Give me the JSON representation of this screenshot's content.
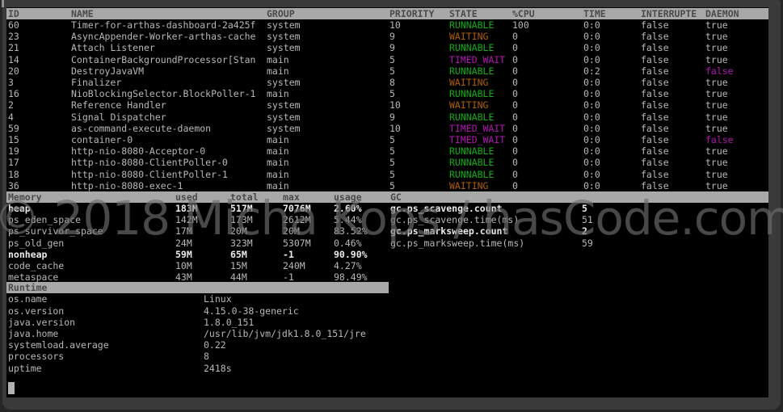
{
  "watermark": {
    "text": "© 2018 Micha Kops / hasCode.com"
  },
  "colors": {
    "text": "#b8b8b8",
    "bold_text": "#ebebeb",
    "header_bar_bg": "#a8a8a8",
    "header_bar_text": "#4a4a4a",
    "state_colors": {
      "RUNNABLE": "#0fae0f",
      "WAITING": "#ae5f00",
      "TIMED_WAIT": "#b413b4"
    },
    "daemon_false": "#b413b4"
  },
  "thread_table": {
    "headers": [
      "ID",
      "NAME",
      "GROUP",
      "PRIORITY",
      "STATE",
      "%CPU",
      "TIME",
      "INTERRUPTE",
      "DAEMON"
    ],
    "rows": [
      {
        "id": "60",
        "name": "Timer-for-arthas-dashboard-2a425f",
        "group": "system",
        "priority": "10",
        "state": "RUNNABLE",
        "cpu": "100",
        "time": "0:0",
        "interrupted": "false",
        "daemon": "true"
      },
      {
        "id": "23",
        "name": "AsyncAppender-Worker-arthas-cache",
        "group": "system",
        "priority": "9",
        "state": "WAITING",
        "cpu": "0",
        "time": "0:0",
        "interrupted": "false",
        "daemon": "true"
      },
      {
        "id": "21",
        "name": "Attach Listener",
        "group": "system",
        "priority": "9",
        "state": "RUNNABLE",
        "cpu": "0",
        "time": "0:0",
        "interrupted": "false",
        "daemon": "true"
      },
      {
        "id": "14",
        "name": "ContainerBackgroundProcessor[Stan",
        "group": "main",
        "priority": "5",
        "state": "TIMED_WAIT",
        "cpu": "0",
        "time": "0:0",
        "interrupted": "false",
        "daemon": "true"
      },
      {
        "id": "20",
        "name": "DestroyJavaVM",
        "group": "main",
        "priority": "5",
        "state": "RUNNABLE",
        "cpu": "0",
        "time": "0:2",
        "interrupted": "false",
        "daemon": "false"
      },
      {
        "id": "3",
        "name": "Finalizer",
        "group": "system",
        "priority": "8",
        "state": "WAITING",
        "cpu": "0",
        "time": "0:0",
        "interrupted": "false",
        "daemon": "true"
      },
      {
        "id": "16",
        "name": "NioBlockingSelector.BlockPoller-1",
        "group": "main",
        "priority": "5",
        "state": "RUNNABLE",
        "cpu": "0",
        "time": "0:0",
        "interrupted": "false",
        "daemon": "true"
      },
      {
        "id": "2",
        "name": "Reference Handler",
        "group": "system",
        "priority": "10",
        "state": "WAITING",
        "cpu": "0",
        "time": "0:0",
        "interrupted": "false",
        "daemon": "true"
      },
      {
        "id": "4",
        "name": "Signal Dispatcher",
        "group": "system",
        "priority": "9",
        "state": "RUNNABLE",
        "cpu": "0",
        "time": "0:0",
        "interrupted": "false",
        "daemon": "true"
      },
      {
        "id": "59",
        "name": "as-command-execute-daemon",
        "group": "system",
        "priority": "10",
        "state": "TIMED_WAIT",
        "cpu": "0",
        "time": "0:0",
        "interrupted": "false",
        "daemon": "true"
      },
      {
        "id": "15",
        "name": "container-0",
        "group": "main",
        "priority": "5",
        "state": "TIMED_WAIT",
        "cpu": "0",
        "time": "0:0",
        "interrupted": "false",
        "daemon": "false"
      },
      {
        "id": "19",
        "name": "http-nio-8080-Acceptor-0",
        "group": "main",
        "priority": "5",
        "state": "RUNNABLE",
        "cpu": "0",
        "time": "0:0",
        "interrupted": "false",
        "daemon": "true"
      },
      {
        "id": "17",
        "name": "http-nio-8080-ClientPoller-0",
        "group": "main",
        "priority": "5",
        "state": "RUNNABLE",
        "cpu": "0",
        "time": "0:0",
        "interrupted": "false",
        "daemon": "true"
      },
      {
        "id": "18",
        "name": "http-nio-8080-ClientPoller-1",
        "group": "main",
        "priority": "5",
        "state": "RUNNABLE",
        "cpu": "0",
        "time": "0:0",
        "interrupted": "false",
        "daemon": "true"
      },
      {
        "id": "36",
        "name": "http-nio-8080-exec-1",
        "group": "main",
        "priority": "5",
        "state": "WAITING",
        "cpu": "0",
        "time": "0:0",
        "interrupted": "false",
        "daemon": "true"
      }
    ]
  },
  "memory_table": {
    "title": "Memory",
    "headers": [
      "used",
      "total",
      "max",
      "usage"
    ],
    "gc_title": "GC",
    "rows": [
      {
        "label": "heap",
        "used": "183M",
        "total": "517M",
        "max": "7076M",
        "usage": "2.60%",
        "bold": true
      },
      {
        "label": "ps_eden_space",
        "used": "142M",
        "total": "173M",
        "max": "2612M",
        "usage": "5.44%",
        "bold": false
      },
      {
        "label": "ps_survivor_space",
        "used": "17M",
        "total": "20M",
        "max": "20M",
        "usage": "83.52%",
        "bold": false
      },
      {
        "label": "ps_old_gen",
        "used": "24M",
        "total": "323M",
        "max": "5307M",
        "usage": "0.46%",
        "bold": false
      },
      {
        "label": "nonheap",
        "used": "59M",
        "total": "65M",
        "max": "-1",
        "usage": "90.90%",
        "bold": true
      },
      {
        "label": "code_cache",
        "used": "10M",
        "total": "15M",
        "max": "240M",
        "usage": "4.27%",
        "bold": false
      },
      {
        "label": "metaspace",
        "used": "43M",
        "total": "44M",
        "max": "-1",
        "usage": "98.49%",
        "bold": false
      }
    ],
    "gc_rows": [
      {
        "label": "gc.ps_scavenge.count",
        "value": "5",
        "bold": true
      },
      {
        "label": "gc.ps_scavenge.time(ms)",
        "value": "51",
        "bold": false
      },
      {
        "label": "gc.ps_marksweep.count",
        "value": "2",
        "bold": true
      },
      {
        "label": "gc.ps_marksweep.time(ms)",
        "value": "59",
        "bold": false
      }
    ]
  },
  "runtime_table": {
    "title": "Runtime",
    "rows": [
      {
        "label": "os.name",
        "value": "Linux"
      },
      {
        "label": "os.version",
        "value": "4.15.0-38-generic"
      },
      {
        "label": "java.version",
        "value": "1.8.0_151"
      },
      {
        "label": "java.home",
        "value": "/usr/lib/jvm/jdk1.8.0_151/jre"
      },
      {
        "label": "systemload.average",
        "value": "0.22"
      },
      {
        "label": "processors",
        "value": "8"
      },
      {
        "label": "uptime",
        "value": "2418s"
      }
    ]
  }
}
